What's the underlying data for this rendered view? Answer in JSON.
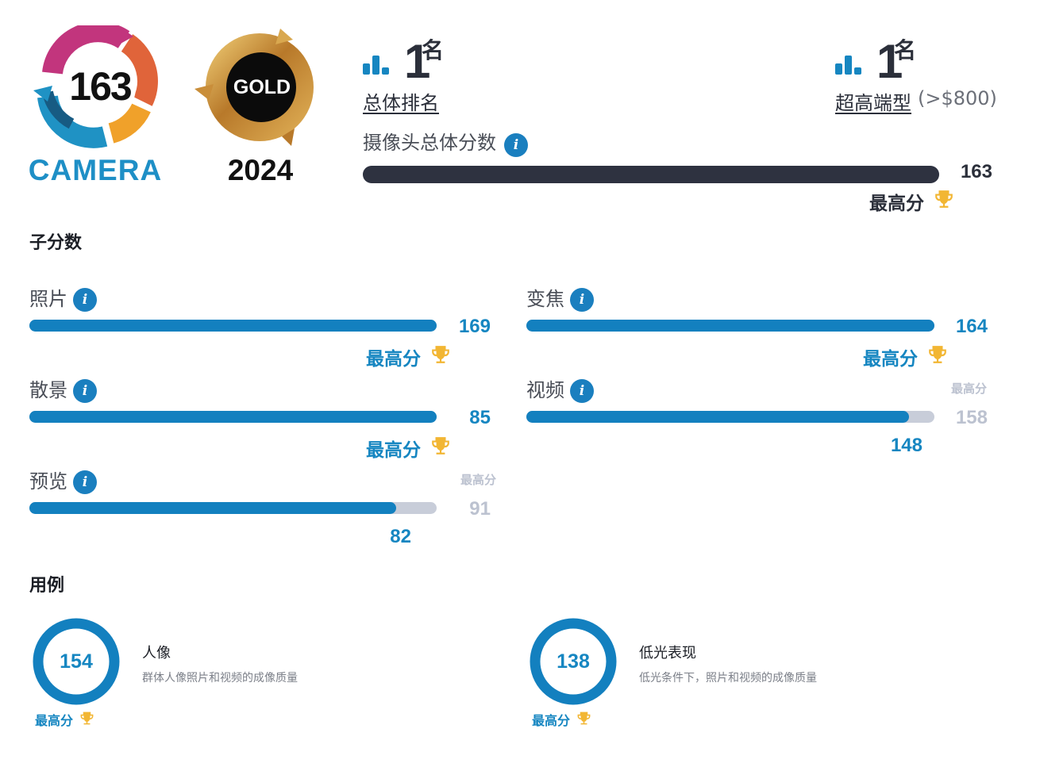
{
  "badges": {
    "camera_score": "163",
    "camera_label": "CAMERA",
    "gold_label": "GOLD",
    "year": "2024"
  },
  "ranking": {
    "overall": {
      "number": "1",
      "suffix": "名",
      "label": "总体排名"
    },
    "segment": {
      "number": "1",
      "suffix": "名",
      "label": "超高端型",
      "price": "(>$800)"
    }
  },
  "overall_score": {
    "title": "摄像头总体分数",
    "value": "163",
    "best_label": "最高分",
    "fraction": 1.0
  },
  "sub_scores": {
    "title": "子分数",
    "items": [
      {
        "name": "照片",
        "value": "169",
        "fraction": 1.0,
        "best_label": "最高分",
        "is_best": true
      },
      {
        "name": "变焦",
        "value": "164",
        "fraction": 1.0,
        "best_label": "最高分",
        "is_best": true
      },
      {
        "name": "散景",
        "value": "85",
        "fraction": 1.0,
        "best_label": "最高分",
        "is_best": true
      },
      {
        "name": "视频",
        "value": "148",
        "best_value": "158",
        "fraction": 0.937,
        "best_label": "最高分",
        "is_best": false
      },
      {
        "name": "预览",
        "value": "82",
        "best_value": "91",
        "fraction": 0.901,
        "best_label": "最高分",
        "is_best": false
      }
    ]
  },
  "use_cases": {
    "title": "用例",
    "items": [
      {
        "value": "154",
        "title": "人像",
        "description": "群体人像照片和视频的成像质量",
        "best_label": "最高分"
      },
      {
        "value": "138",
        "title": "低光表现",
        "description": "低光条件下，照片和视频的成像质量",
        "best_label": "最高分"
      }
    ]
  },
  "colors": {
    "accent_blue": "#1380bf",
    "dark_bar": "#2e3240",
    "track_gray": "#c8cdd9",
    "trophy_gold": "#f2b633"
  },
  "icons": {
    "info": "info-icon",
    "trophy": "trophy-icon",
    "rank": "bar-chart-icon"
  }
}
